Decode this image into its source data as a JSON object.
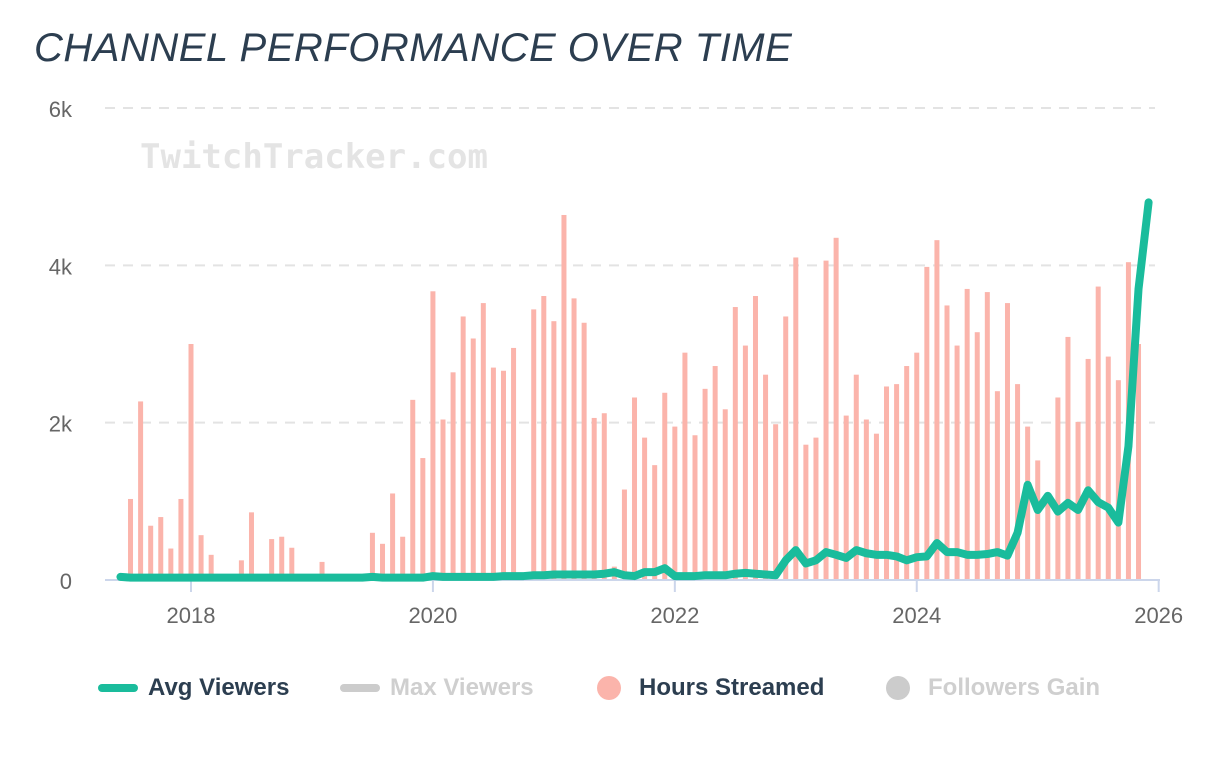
{
  "chart_data": {
    "type": "bar+line",
    "title": "CHANNEL PERFORMANCE OVER TIME",
    "watermark": "TwitchTracker.com",
    "x_start": "2017-06",
    "x_interval": "month",
    "x_tick_labels": [
      "2018",
      "2020",
      "2022",
      "2024",
      "2026"
    ],
    "y_tick_labels": [
      "0",
      "2k",
      "4k",
      "6k"
    ],
    "ylim": [
      0,
      6000
    ],
    "grid": true,
    "legend_position": "bottom",
    "series": [
      {
        "name": "Avg Viewers",
        "type": "line",
        "color": "#1abc9c",
        "visible": true,
        "values": [
          40,
          30,
          30,
          30,
          30,
          30,
          30,
          30,
          30,
          30,
          30,
          30,
          30,
          30,
          30,
          30,
          30,
          30,
          30,
          30,
          30,
          30,
          30,
          30,
          30,
          40,
          30,
          30,
          30,
          30,
          30,
          50,
          40,
          40,
          40,
          40,
          40,
          40,
          50,
          50,
          50,
          60,
          60,
          70,
          70,
          70,
          70,
          70,
          80,
          100,
          60,
          50,
          100,
          100,
          150,
          50,
          50,
          50,
          60,
          60,
          60,
          80,
          90,
          80,
          70,
          60,
          250,
          380,
          210,
          250,
          355,
          320,
          280,
          380,
          340,
          320,
          320,
          300,
          250,
          290,
          300,
          470,
          355,
          355,
          320,
          320,
          330,
          355,
          310,
          600,
          1210,
          890,
          1070,
          870,
          980,
          890,
          1140,
          990,
          920,
          730,
          1700,
          3700,
          4800
        ]
      },
      {
        "name": "Max Viewers",
        "type": "line",
        "color": "#cccccc",
        "visible": false
      },
      {
        "name": "Hours Streamed",
        "type": "bar",
        "color": "#fbb4ab",
        "visible": true,
        "values": [
          0,
          1030,
          2270,
          690,
          800,
          400,
          1030,
          3000,
          570,
          320,
          0,
          0,
          250,
          860,
          0,
          520,
          550,
          410,
          0,
          0,
          230,
          0,
          0,
          0,
          0,
          600,
          460,
          1100,
          550,
          2290,
          1550,
          3670,
          2040,
          2640,
          3350,
          3070,
          3520,
          2700,
          2660,
          2950,
          0,
          3440,
          3610,
          3290,
          4640,
          3580,
          3270,
          2060,
          2120,
          170,
          1150,
          2320,
          1810,
          1460,
          2380,
          1950,
          2890,
          1840,
          2430,
          2720,
          2170,
          3470,
          2980,
          3610,
          2610,
          1980,
          3350,
          4100,
          1720,
          1810,
          4060,
          4350,
          2090,
          2610,
          2040,
          1860,
          2460,
          2490,
          2720,
          2890,
          3980,
          4320,
          3490,
          2980,
          3700,
          3150,
          3660,
          2400,
          3520,
          2490,
          1950,
          1520,
          1000,
          2320,
          3090,
          2010,
          2810,
          3730,
          2840,
          2540,
          4040,
          3000,
          0
        ]
      },
      {
        "name": "Followers Gain",
        "type": "bar",
        "color": "#cccccc",
        "visible": false
      }
    ]
  }
}
